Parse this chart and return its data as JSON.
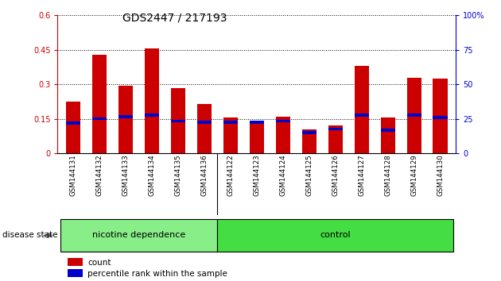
{
  "title": "GDS2447 / 217193",
  "categories": [
    "GSM144131",
    "GSM144132",
    "GSM144133",
    "GSM144134",
    "GSM144135",
    "GSM144136",
    "GSM144122",
    "GSM144123",
    "GSM144124",
    "GSM144125",
    "GSM144126",
    "GSM144127",
    "GSM144128",
    "GSM144129",
    "GSM144130"
  ],
  "count_values": [
    0.225,
    0.43,
    0.295,
    0.455,
    0.285,
    0.215,
    0.155,
    0.14,
    0.16,
    0.105,
    0.12,
    0.38,
    0.155,
    0.33,
    0.325
  ],
  "percentile_values": [
    0.13,
    0.15,
    0.16,
    0.165,
    0.14,
    0.135,
    0.135,
    0.135,
    0.14,
    0.09,
    0.105,
    0.165,
    0.1,
    0.165,
    0.155
  ],
  "left_ylim": [
    0,
    0.6
  ],
  "right_ylim": [
    0,
    100
  ],
  "left_yticks": [
    0,
    0.15,
    0.3,
    0.45,
    0.6
  ],
  "right_yticks": [
    0,
    25,
    50,
    75,
    100
  ],
  "left_ytick_labels": [
    "0",
    "0.15",
    "0.3",
    "0.45",
    "0.6"
  ],
  "right_ytick_labels": [
    "0",
    "25",
    "50",
    "75",
    "100%"
  ],
  "bar_color": "#cc0000",
  "percentile_color": "#0000cc",
  "bar_width": 0.55,
  "group1_label": "nicotine dependence",
  "group2_label": "control",
  "group1_count": 6,
  "group2_count": 9,
  "group1_color": "#88ee88",
  "group2_color": "#44dd44",
  "disease_state_label": "disease state",
  "legend_count_label": "count",
  "legend_percentile_label": "percentile rank within the sample",
  "background_color": "#ffffff",
  "title_fontsize": 10,
  "tick_fontsize": 7,
  "dotted_lines": [
    0.15,
    0.3,
    0.45,
    0.6
  ]
}
